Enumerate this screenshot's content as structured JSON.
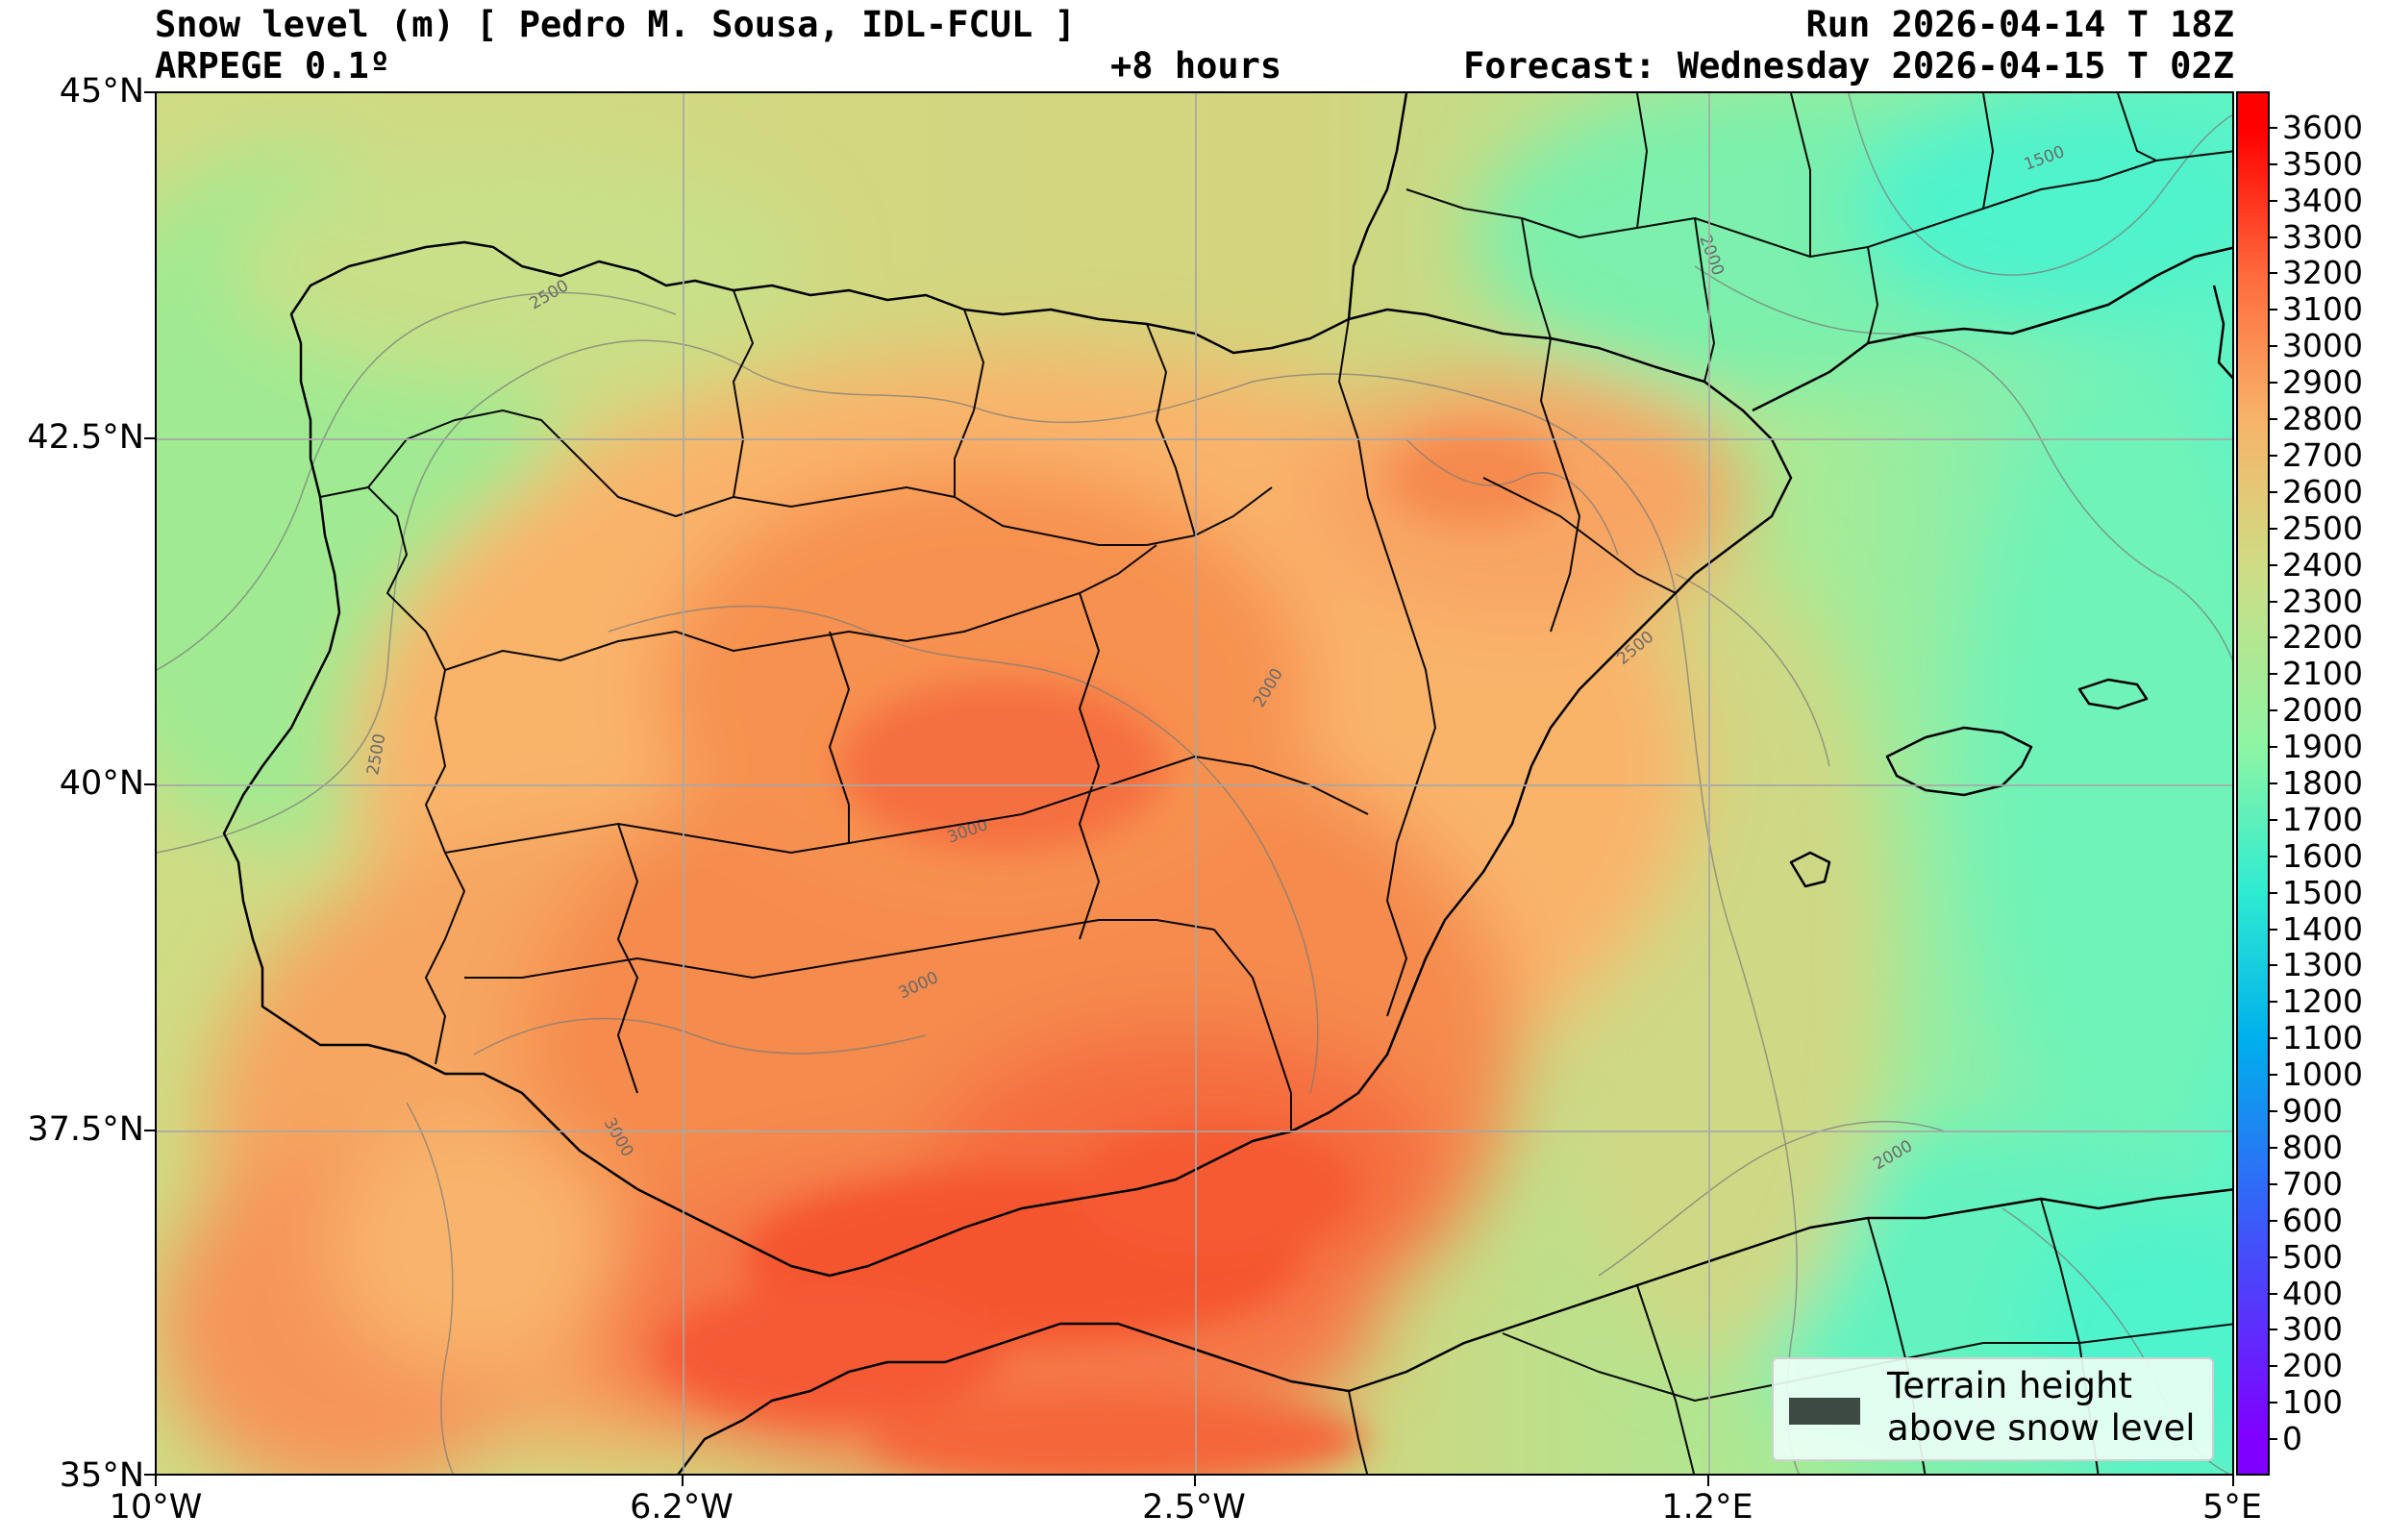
{
  "header": {
    "title_left": "Snow level (m) [ Pedro M. Sousa, IDL-FCUL ]",
    "model": "ARPEGE 0.1º",
    "lead_time": "+8 hours",
    "run": "Run 2026-04-14 T 18Z",
    "forecast": "Forecast: Wednesday 2026-04-15 T 02Z"
  },
  "map": {
    "lat_labels": [
      "45°N",
      "42.5°N",
      "40°N",
      "37.5°N",
      "35°N"
    ],
    "lon_labels": [
      "10°W",
      "6.2°W",
      "2.5°W",
      "1.2°E",
      "5°E"
    ],
    "lat_values": [
      45,
      42.5,
      40,
      37.5,
      35
    ],
    "lon_values": [
      -10,
      -6.2,
      -2.5,
      1.2,
      5
    ],
    "extent": {
      "lon_min": -10,
      "lon_max": 5,
      "lat_min": 35,
      "lat_max": 45
    },
    "contour_labels": [
      "2500",
      "1500",
      "2000",
      "2500",
      "2000",
      "2500",
      "3000",
      "3000",
      "3000",
      "2000"
    ],
    "gridlines": true
  },
  "colorbar": {
    "unit": "m",
    "ticks": [
      "3600",
      "3500",
      "3400",
      "3300",
      "3200",
      "3100",
      "3000",
      "2900",
      "2800",
      "2700",
      "2600",
      "2500",
      "2400",
      "2300",
      "2200",
      "2100",
      "2000",
      "1900",
      "1800",
      "1700",
      "1600",
      "1500",
      "1400",
      "1300",
      "1200",
      "1100",
      "1000",
      "900",
      "800",
      "700",
      "600",
      "500",
      "400",
      "300",
      "200",
      "100",
      "0"
    ],
    "colors": {
      "0": "#8000ff",
      "600": "#3a5cf8",
      "1100": "#00b0ec",
      "1500": "#2eebd2",
      "1900": "#8df5a4",
      "2400": "#cfdc84",
      "2800": "#f7b469",
      "3200": "#ff6a3c",
      "3600": "#ff0000"
    }
  },
  "legend": {
    "label": "Terrain height\nabove snow level",
    "swatch_color": "#3d4a44"
  }
}
